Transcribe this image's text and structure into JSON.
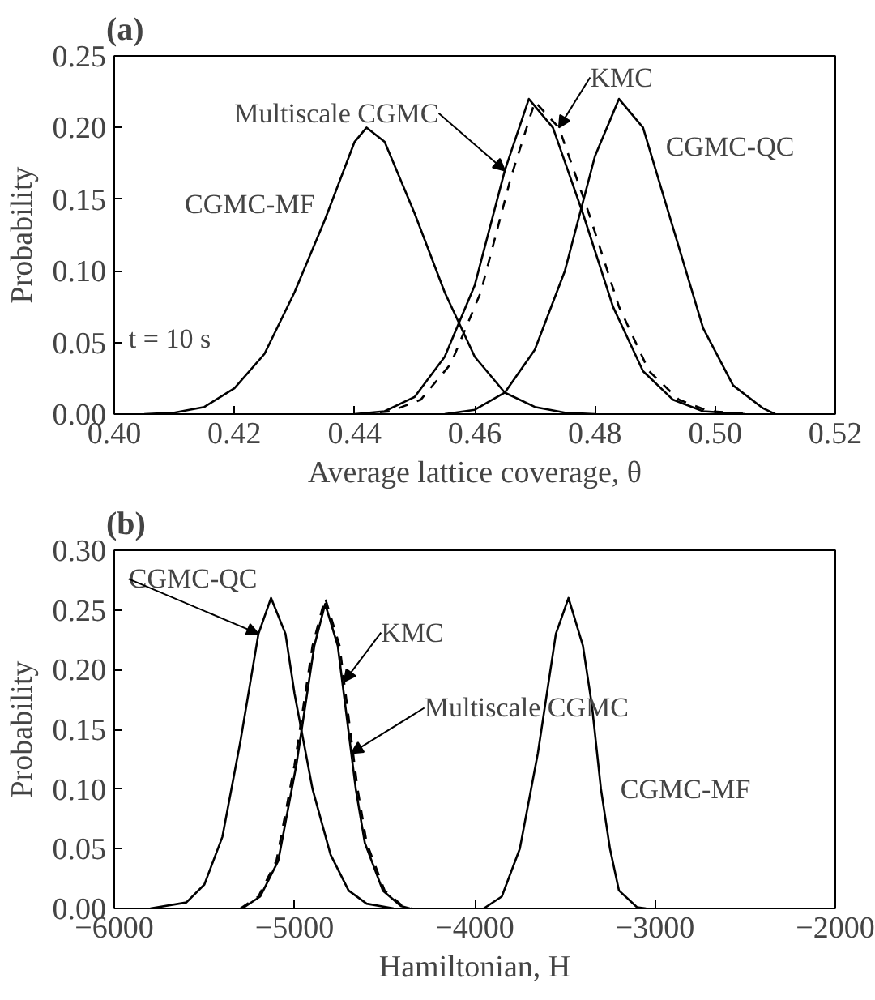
{
  "chart_data": [
    {
      "type": "line",
      "title": "(a)",
      "xlabel": "Average lattice coverage, θ",
      "ylabel": "Probability",
      "xlim": [
        0.4,
        0.52
      ],
      "ylim": [
        0.0,
        0.25
      ],
      "xticks": [
        {
          "value": 0.4,
          "label": "0.40"
        },
        {
          "value": 0.42,
          "label": "0.42"
        },
        {
          "value": 0.44,
          "label": "0.44"
        },
        {
          "value": 0.46,
          "label": "0.46"
        },
        {
          "value": 0.48,
          "label": "0.48"
        },
        {
          "value": 0.5,
          "label": "0.50"
        },
        {
          "value": 0.52,
          "label": "0.52"
        }
      ],
      "yticks": [
        {
          "value": 0.0,
          "label": "0.00"
        },
        {
          "value": 0.05,
          "label": "0.05"
        },
        {
          "value": 0.1,
          "label": "0.10"
        },
        {
          "value": 0.15,
          "label": "0.15"
        },
        {
          "value": 0.2,
          "label": "0.20"
        },
        {
          "value": 0.25,
          "label": "0.25"
        }
      ],
      "series": [
        {
          "color": "#000000",
          "line_style": "solid",
          "x": [
            0.405,
            0.41,
            0.415,
            0.42,
            0.425,
            0.43,
            0.435,
            0.44,
            0.442,
            0.445,
            0.45,
            0.455,
            0.46,
            0.465,
            0.47,
            0.475,
            0.48
          ],
          "values": [
            0.0,
            0.001,
            0.005,
            0.018,
            0.042,
            0.085,
            0.135,
            0.19,
            0.2,
            0.19,
            0.14,
            0.085,
            0.04,
            0.015,
            0.005,
            0.001,
            0.0
          ]
        },
        {
          "color": "#000000",
          "line_style": "solid",
          "x": [
            0.44,
            0.445,
            0.45,
            0.455,
            0.46,
            0.465,
            0.469,
            0.473,
            0.478,
            0.483,
            0.488,
            0.493,
            0.498,
            0.505
          ],
          "values": [
            0.0,
            0.002,
            0.012,
            0.04,
            0.09,
            0.17,
            0.22,
            0.2,
            0.14,
            0.075,
            0.03,
            0.01,
            0.002,
            0.0
          ]
        },
        {
          "color": "#000000",
          "line_style": "dashed",
          "x": [
            0.441,
            0.446,
            0.451,
            0.456,
            0.461,
            0.466,
            0.47,
            0.474,
            0.479,
            0.484,
            0.489,
            0.494,
            0.499,
            0.506
          ],
          "values": [
            0.0,
            0.002,
            0.01,
            0.035,
            0.085,
            0.165,
            0.218,
            0.2,
            0.14,
            0.075,
            0.03,
            0.01,
            0.002,
            0.0
          ]
        },
        {
          "color": "#000000",
          "line_style": "solid",
          "x": [
            0.455,
            0.46,
            0.465,
            0.47,
            0.475,
            0.48,
            0.484,
            0.488,
            0.493,
            0.498,
            0.503,
            0.508,
            0.51
          ],
          "values": [
            0.0,
            0.003,
            0.015,
            0.045,
            0.1,
            0.18,
            0.22,
            0.2,
            0.13,
            0.06,
            0.02,
            0.004,
            0.0
          ]
        }
      ],
      "annotations": [
        {
          "text": "Multiscale CGMC",
          "x": 0.465,
          "y": 0.17
        },
        {
          "text": "KMC",
          "x": 0.474,
          "y": 0.2
        },
        {
          "text": "CGMC-QC",
          "x": 0.488,
          "y": 0.2
        },
        {
          "text": "CGMC-MF",
          "x": 0.435,
          "y": 0.135
        },
        "t = 10 s"
      ]
    },
    {
      "type": "line",
      "title": "(b)",
      "xlabel": "Hamiltonian, H",
      "ylabel": "Probability",
      "xlim": [
        -6000,
        -2000
      ],
      "ylim": [
        0.0,
        0.3
      ],
      "xticks": [
        -6000,
        -5000,
        -4000,
        -3000,
        -2000
      ],
      "yticks": [
        {
          "value": 0.0,
          "label": "0.00"
        },
        {
          "value": 0.05,
          "label": "0.05"
        },
        {
          "value": 0.1,
          "label": "0.10"
        },
        {
          "value": 0.15,
          "label": "0.15"
        },
        {
          "value": 0.2,
          "label": "0.20"
        },
        {
          "value": 0.25,
          "label": "0.25"
        },
        {
          "value": 0.3,
          "label": "0.30"
        }
      ],
      "series": [
        {
          "color": "#000000",
          "line_style": "solid",
          "x": [
            -5800,
            -5600,
            -5500,
            -5400,
            -5300,
            -5200,
            -5130,
            -5050,
            -5000,
            -4900,
            -4800,
            -4700,
            -4600,
            -4450
          ],
          "values": [
            0.0,
            0.005,
            0.02,
            0.06,
            0.14,
            0.23,
            0.26,
            0.23,
            0.18,
            0.1,
            0.045,
            0.015,
            0.004,
            0.0
          ]
        },
        {
          "color": "#000000",
          "line_style": "dashed",
          "x": [
            -5300,
            -5200,
            -5100,
            -5000,
            -4900,
            -4830,
            -4750,
            -4700,
            -4650,
            -4600,
            -4500,
            -4400,
            -4350
          ],
          "values": [
            0.0,
            0.01,
            0.04,
            0.12,
            0.22,
            0.26,
            0.22,
            0.16,
            0.1,
            0.055,
            0.015,
            0.002,
            0.0
          ]
        },
        {
          "color": "#000000",
          "line_style": "solid",
          "x": [
            -5290,
            -5190,
            -5090,
            -4990,
            -4890,
            -4830,
            -4760,
            -4710,
            -4660,
            -4610,
            -4510,
            -4410,
            -4360
          ],
          "values": [
            0.0,
            0.01,
            0.04,
            0.12,
            0.22,
            0.255,
            0.22,
            0.16,
            0.1,
            0.055,
            0.015,
            0.002,
            0.0
          ]
        },
        {
          "color": "#000000",
          "line_style": "solid",
          "x": [
            -3950,
            -3850,
            -3750,
            -3650,
            -3550,
            -3480,
            -3400,
            -3350,
            -3300,
            -3250,
            -3200,
            -3100,
            -3050
          ],
          "values": [
            0.0,
            0.01,
            0.05,
            0.13,
            0.23,
            0.26,
            0.22,
            0.17,
            0.1,
            0.05,
            0.015,
            0.001,
            0.0
          ]
        }
      ],
      "annotations": [
        {
          "text": "CGMC-QC",
          "x": -5200,
          "y": 0.23
        },
        {
          "text": "KMC",
          "x": -4725,
          "y": 0.19
        },
        {
          "text": "Multiscale CGMC",
          "x": -4685,
          "y": 0.13
        },
        {
          "text": "CGMC-MF",
          "x": -3300,
          "y": 0.1
        }
      ]
    }
  ]
}
